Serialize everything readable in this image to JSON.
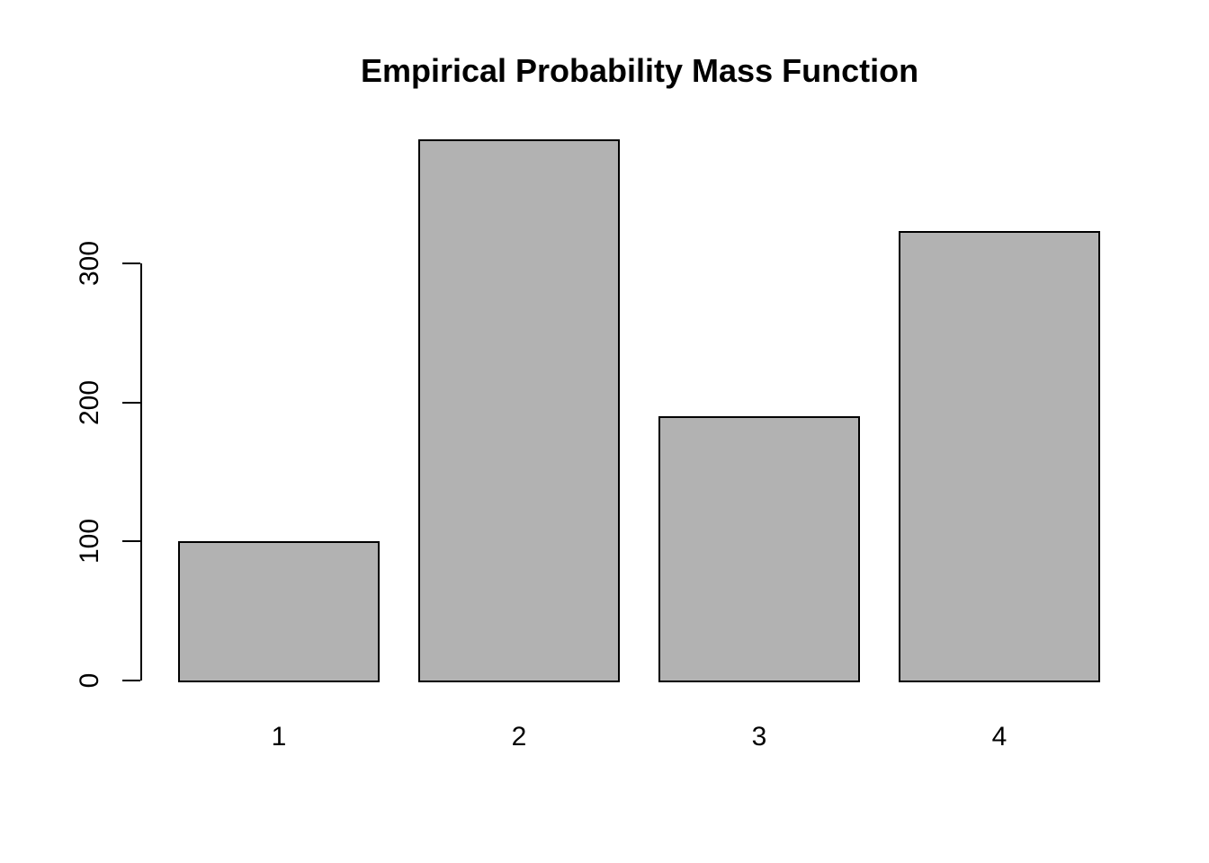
{
  "chart_data": {
    "type": "bar",
    "title": "Empirical Probability Mass Function",
    "categories": [
      "1",
      "2",
      "3",
      "4"
    ],
    "values": [
      100,
      389,
      190,
      323
    ],
    "xlabel": "",
    "ylabel": "",
    "yticks": [
      0,
      100,
      200,
      300
    ],
    "ylim": [
      0,
      390
    ],
    "grid": false,
    "legend": "none",
    "y_tick_label_orientation": "rotated-90",
    "colors": {
      "bar_fill": "#b2b2b2",
      "bar_border": "#000000",
      "axis": "#000000",
      "text": "#000000",
      "background": "#ffffff"
    }
  }
}
